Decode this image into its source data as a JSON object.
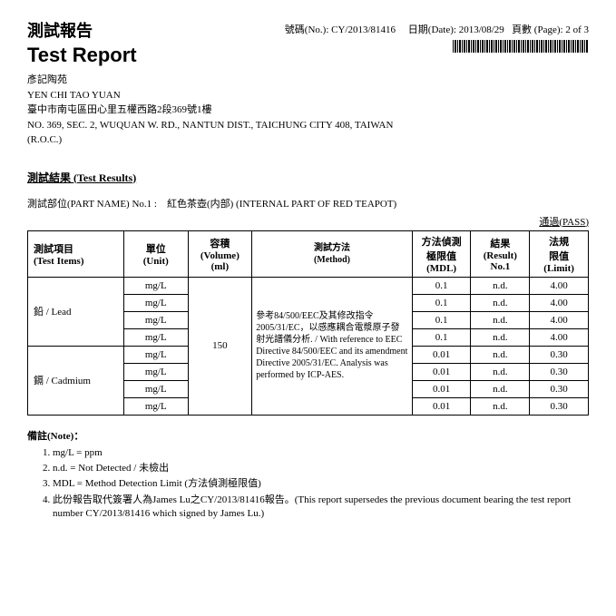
{
  "header": {
    "title_zh": "測試報告",
    "title_en": "Test Report",
    "no_label": "號碼(No.):",
    "no_value": "CY/2013/81416",
    "date_label": "日期(Date):",
    "date_value": "2013/08/29",
    "page_label": "頁數 (Page):",
    "page_value": "2 of 3"
  },
  "address": {
    "line1_zh": "彥記陶苑",
    "line1_en": "YEN CHI TAO YUAN",
    "line2_zh": "臺中市南屯區田心里五權西路2段369號1樓",
    "line2_en": "NO. 369, SEC. 2, WUQUAN W. RD., NANTUN DIST., TAICHUNG CITY 408, TAIWAN",
    "line3": "(R.O.C.)"
  },
  "results": {
    "section_title": "測試結果 (Test Results)",
    "part_line": "測試部位(PART NAME) No.1 :　紅色茶壺(内部) (INTERNAL PART OF RED TEAPOT)",
    "pass_label": "通過(PASS)"
  },
  "table": {
    "headers": {
      "item": "測試項目\n(Test Items)",
      "unit": "單位\n(Unit)",
      "volume": "容積\n(Volume)\n(ml)",
      "method": "測試方法\n(Method)",
      "mdl": "方法偵測\n極限值\n(MDL)",
      "result": "結果\n(Result)\nNo.1",
      "limit": "法規\n限值\n(Limit)"
    },
    "items": {
      "lead": "鉛 / Lead",
      "cadmium": "鎘 / Cadmium"
    },
    "unit_val": "mg/L",
    "volume_val": "150",
    "method_text": "參考84/500/EEC及其修改指令2005/31/EC，以感應耦合電漿原子發射光譜儀分析. / With reference to EEC Directive 84/500/EEC and its amendment Directive 2005/31/EC. Analysis was performed by ICP-AES.",
    "rows": [
      {
        "mdl": "0.1",
        "res": "n.d.",
        "lim": "4.00"
      },
      {
        "mdl": "0.1",
        "res": "n.d.",
        "lim": "4.00"
      },
      {
        "mdl": "0.1",
        "res": "n.d.",
        "lim": "4.00"
      },
      {
        "mdl": "0.1",
        "res": "n.d.",
        "lim": "4.00"
      },
      {
        "mdl": "0.01",
        "res": "n.d.",
        "lim": "0.30"
      },
      {
        "mdl": "0.01",
        "res": "n.d.",
        "lim": "0.30"
      },
      {
        "mdl": "0.01",
        "res": "n.d.",
        "lim": "0.30"
      },
      {
        "mdl": "0.01",
        "res": "n.d.",
        "lim": "0.30"
      }
    ]
  },
  "notes": {
    "title": "備註(Note)：",
    "items": [
      "mg/L = ppm",
      "n.d. = Not Detected / 未檢出",
      "MDL = Method Detection Limit (方法偵測極限值)",
      "此份報告取代簽署人為James Lu之CY/2013/81416報告。(This report supersedes the previous document bearing the test report number CY/2013/81416 which signed by James Lu.)"
    ]
  }
}
